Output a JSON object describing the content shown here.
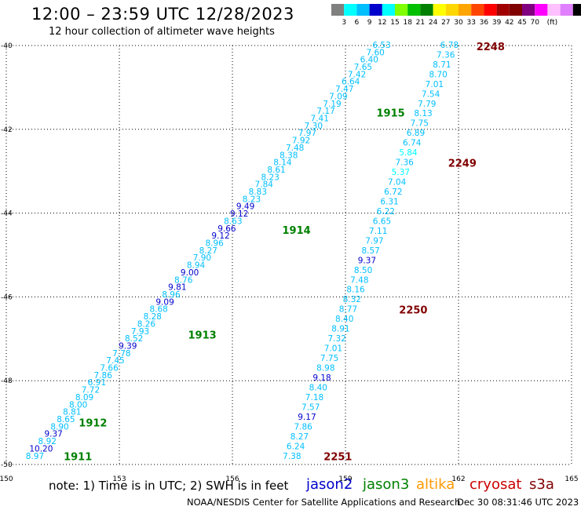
{
  "header": {
    "title": "12:00 – 23:59 UTC 12/28/2023",
    "subtitle": "12 hour collection of altimeter wave heights"
  },
  "scale_bar": {
    "colors": [
      "#808080",
      "#00ffff",
      "#00bfff",
      "#0000cd",
      "#00ffff",
      "#7fff00",
      "#00c000",
      "#008000",
      "#ffff00",
      "#ffd700",
      "#ffa500",
      "#ff4500",
      "#ff0000",
      "#a00000",
      "#800000",
      "#800080",
      "#ff00ff",
      "#ffc0ff",
      "#e080ff",
      "#000000"
    ],
    "labels": [
      "3",
      "6",
      "9",
      "12",
      "15",
      "18",
      "21",
      "24",
      "27",
      "30",
      "33",
      "36",
      "39",
      "42",
      "45",
      "70",
      "(ft)"
    ]
  },
  "footer": {
    "note": "note:  1) Time is in UTC; 2) SWH is in feet",
    "satellites": [
      {
        "name": "jason2",
        "color": "#0000cc"
      },
      {
        "name": "jason3",
        "color": "#008000"
      },
      {
        "name": "altika",
        "color": "#ff9900"
      },
      {
        "name": "cryosat",
        "color": "#cc0000"
      },
      {
        "name": "s3a",
        "color": "#800000"
      }
    ],
    "credit": "NOAA/NESDIS Center for Satellite Applications and Research",
    "timestamp": "Dec 30 08:31:46 UTC 2023"
  },
  "chart_data": {
    "type": "scatter",
    "x_ticks": [
      "150",
      "153",
      "156",
      "159",
      "162",
      "165"
    ],
    "y_ticks": [
      "-40",
      "-42",
      "-44",
      "-46",
      "-48",
      "-50"
    ],
    "xlim": [
      150,
      165
    ],
    "ylim": [
      -50,
      -40
    ],
    "grid": true,
    "tracks": [
      {
        "label": "1911",
        "label_color": "#008000",
        "start": [
          150.76,
          -49.79
        ],
        "end": [
          159.96,
          -39.98
        ],
        "values": [
          "8.97",
          "10.20",
          "8.92",
          "9.37",
          "8.90",
          "8.65",
          "8.81",
          "8.00",
          "8.09",
          "7.72",
          "6.91",
          "7.86",
          "7.66",
          "7.45",
          "7.78",
          "9.39",
          "8.52",
          "7.93",
          "8.26",
          "8.28",
          "8.68",
          "9.09",
          "8.96",
          "9.81",
          "8.76",
          "9.00",
          "8.94",
          "7.90",
          "8.27",
          "8.96",
          "9.12",
          "9.66",
          "8.63",
          "9.12",
          "9.49",
          "8.23",
          "8.83",
          "7.84",
          "8.23",
          "8.61",
          "8.14",
          "8.38",
          "7.48",
          "7.92",
          "7.97",
          "7.30",
          "7.41",
          "7.17",
          "7.19",
          "7.09",
          "7.47",
          "6.64",
          "7.42",
          "7.65",
          "6.40",
          "7.60",
          "6.53"
        ]
      },
      {
        "label": "2248",
        "label_color": "#800000",
        "start": [
          157.58,
          -49.79
        ],
        "end": [
          161.76,
          -39.98
        ],
        "values": [
          "7.38",
          "6.24",
          "8.27",
          "7.86",
          "9.17",
          "7.57",
          "7.18",
          "8.40",
          "9.18",
          "8.98",
          "7.75",
          "7.01",
          "7.32",
          "8.91",
          "8.40",
          "8.77",
          "8.32",
          "8.16",
          "7.48",
          "8.50",
          "9.37",
          "8.57",
          "7.97",
          "7.11",
          "6.65",
          "6.22",
          "6.31",
          "6.72",
          "7.04",
          "5.37",
          "7.36",
          "5.84",
          "6.74",
          "6.89",
          "7.75",
          "8.13",
          "7.79",
          "7.54",
          "7.01",
          "8.70",
          "8.71",
          "7.36",
          "6.78"
        ]
      }
    ],
    "annotations": [
      {
        "text": "1911",
        "x": 151.9,
        "y": -49.8,
        "color": "#008000"
      },
      {
        "text": "1912",
        "x": 152.3,
        "y": -49.0,
        "color": "#008000"
      },
      {
        "text": "1913",
        "x": 155.2,
        "y": -46.9,
        "color": "#008000"
      },
      {
        "text": "1914",
        "x": 157.7,
        "y": -44.4,
        "color": "#008000"
      },
      {
        "text": "1915",
        "x": 160.2,
        "y": -41.6,
        "color": "#008000"
      },
      {
        "text": "2248",
        "x": 162.85,
        "y": -40.02,
        "color": "#800000"
      },
      {
        "text": "2249",
        "x": 162.1,
        "y": -42.8,
        "color": "#800000"
      },
      {
        "text": "2250",
        "x": 160.8,
        "y": -46.3,
        "color": "#800000"
      },
      {
        "text": "2251",
        "x": 158.8,
        "y": -49.8,
        "color": "#800000"
      }
    ]
  }
}
